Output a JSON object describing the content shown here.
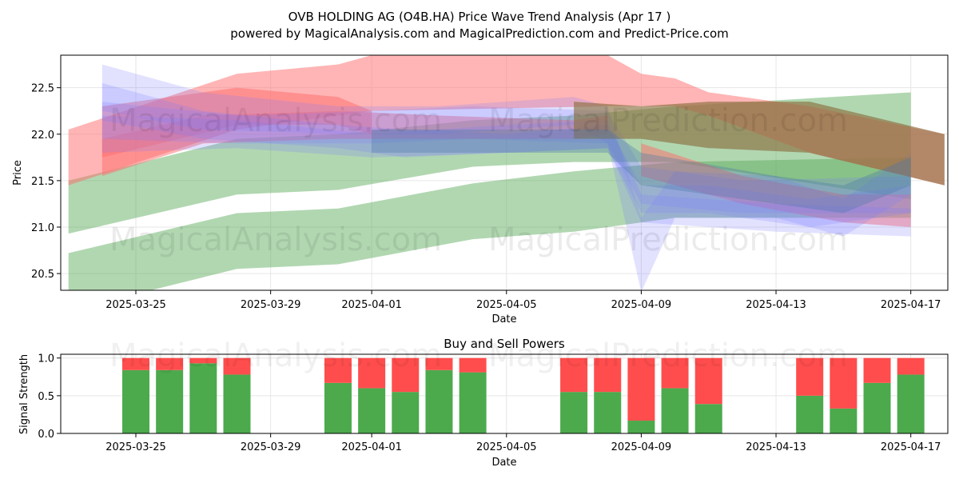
{
  "header": {
    "title": "OVB HOLDING AG (O4B.HA) Price Wave Trend Analysis (Apr 17 )",
    "subtitle": "powered by MagicalAnalysis.com and MagicalPrediction.com and Predict-Price.com"
  },
  "watermarks": [
    "MagicalAnalysis.com",
    "MagicalPrediction.com"
  ],
  "colors": {
    "red_band": "#ff6b6b",
    "blue_band": "#7a7aff",
    "green_band": "#5aaa5a",
    "buy": "#4caa4c",
    "sell": "#ff4d4d",
    "grid": "#e6e6e6"
  },
  "chart_data": [
    {
      "type": "area",
      "xlabel": "Date",
      "ylabel": "Price",
      "xlim": [
        "2025-03-23",
        "2025-04-18"
      ],
      "ylim": [
        20.32,
        22.85
      ],
      "x_ticks": [
        "2025-03-25",
        "2025-03-29",
        "2025-04-01",
        "2025-04-05",
        "2025-04-09",
        "2025-04-13",
        "2025-04-17"
      ],
      "y_ticks": [
        20.5,
        21.0,
        21.5,
        22.0,
        22.5
      ],
      "grid": true,
      "bands": [
        {
          "color": "green",
          "points": [
            [
              "2025-03-23",
              21.5,
              20.93
            ],
            [
              "2025-03-28",
              21.95,
              21.35
            ],
            [
              "2025-03-31",
              22.0,
              21.4
            ],
            [
              "2025-04-04",
              22.15,
              21.65
            ],
            [
              "2025-04-07",
              22.2,
              21.7
            ],
            [
              "2025-04-10",
              22.3,
              21.7
            ],
            [
              "2025-04-17",
              22.45,
              21.3
            ]
          ]
        },
        {
          "color": "green",
          "points": [
            [
              "2025-03-23",
              20.72,
              20.1
            ],
            [
              "2025-03-28",
              21.15,
              20.55
            ],
            [
              "2025-03-31",
              21.2,
              20.6
            ],
            [
              "2025-04-04",
              21.47,
              20.87
            ],
            [
              "2025-04-07",
              21.6,
              20.95
            ],
            [
              "2025-04-10",
              21.7,
              21.1
            ],
            [
              "2025-04-17",
              21.75,
              21.1
            ]
          ]
        },
        {
          "color": "red",
          "points": [
            [
              "2025-03-23",
              22.05,
              21.45
            ],
            [
              "2025-03-28",
              22.65,
              22.05
            ],
            [
              "2025-03-31",
              22.75,
              22.2
            ],
            [
              "2025-04-01",
              22.85,
              22.25
            ],
            [
              "2025-04-08",
              22.85,
              22.3
            ],
            [
              "2025-04-09",
              22.65,
              22.3
            ],
            [
              "2025-04-10",
              22.6,
              22.3
            ],
            [
              "2025-04-11",
              22.45,
              22.2
            ],
            [
              "2025-04-14",
              22.3,
              21.8
            ],
            [
              "2025-04-18",
              22.0,
              21.45
            ]
          ]
        },
        {
          "color": "red",
          "points": [
            [
              "2025-03-24",
              21.95,
              21.55
            ],
            [
              "2025-03-27",
              22.2,
              21.9
            ],
            [
              "2025-03-31",
              22.25,
              21.95
            ],
            [
              "2025-04-03",
              22.2,
              21.95
            ],
            [
              "2025-04-07",
              22.15,
              21.95
            ],
            [
              "2025-04-08",
              22.2,
              22.0
            ]
          ]
        },
        {
          "color": "red",
          "points": [
            [
              "2025-03-24",
              22.3,
              21.75
            ],
            [
              "2025-03-28",
              22.5,
              22.1
            ],
            [
              "2025-03-31",
              22.4,
              22.1
            ],
            [
              "2025-04-01",
              22.25,
              22.0
            ]
          ]
        },
        {
          "color": "red",
          "points": [
            [
              "2025-04-09",
              21.9,
              21.55
            ],
            [
              "2025-04-12",
              21.55,
              21.25
            ],
            [
              "2025-04-15",
              21.35,
              21.05
            ],
            [
              "2025-04-17",
              21.35,
              21.0
            ]
          ]
        },
        {
          "color": "blue",
          "points": [
            [
              "2025-03-24",
              22.75,
              22.25
            ],
            [
              "2025-03-27",
              22.45,
              22.05
            ],
            [
              "2025-03-31",
              22.3,
              22.0
            ],
            [
              "2025-04-03",
              22.3,
              22.0
            ],
            [
              "2025-04-07",
              22.4,
              22.1
            ],
            [
              "2025-04-08",
              22.3,
              21.9
            ],
            [
              "2025-04-09",
              21.1,
              20.3
            ],
            [
              "2025-04-10",
              21.6,
              21.1
            ],
            [
              "2025-04-13",
              21.55,
              21.1
            ],
            [
              "2025-04-15",
              21.3,
              20.9
            ],
            [
              "2025-04-17",
              21.8,
              21.35
            ]
          ]
        },
        {
          "color": "blue",
          "points": [
            [
              "2025-03-24",
              22.55,
              22.15
            ],
            [
              "2025-03-27",
              22.25,
              21.95
            ],
            [
              "2025-03-31",
              22.1,
              21.85
            ],
            [
              "2025-04-02",
              22.05,
              21.75
            ],
            [
              "2025-04-05",
              22.0,
              21.8
            ],
            [
              "2025-04-08",
              22.1,
              21.85
            ],
            [
              "2025-04-09",
              21.45,
              21.15
            ],
            [
              "2025-04-11",
              21.45,
              21.15
            ],
            [
              "2025-04-14",
              21.3,
              21.0
            ],
            [
              "2025-04-17",
              21.45,
              21.15
            ]
          ]
        },
        {
          "color": "blue",
          "points": [
            [
              "2025-03-24",
              22.35,
              21.95
            ],
            [
              "2025-03-28",
              22.2,
              21.9
            ],
            [
              "2025-04-01",
              22.25,
              21.9
            ],
            [
              "2025-04-04",
              22.3,
              21.95
            ],
            [
              "2025-04-08",
              22.25,
              21.9
            ],
            [
              "2025-04-09",
              21.65,
              21.25
            ],
            [
              "2025-04-12",
              21.5,
              21.15
            ],
            [
              "2025-04-17",
              21.55,
              21.15
            ]
          ]
        },
        {
          "color": "blue",
          "points": [
            [
              "2025-03-24",
              22.2,
              21.8
            ],
            [
              "2025-03-28",
              22.15,
              21.85
            ],
            [
              "2025-04-01",
              22.0,
              21.75
            ],
            [
              "2025-04-05",
              22.1,
              21.8
            ],
            [
              "2025-04-08",
              22.15,
              21.85
            ],
            [
              "2025-04-09",
              21.35,
              21.05
            ],
            [
              "2025-04-13",
              21.25,
              20.95
            ],
            [
              "2025-04-17",
              21.2,
              20.9
            ]
          ]
        },
        {
          "color": "brown",
          "points": [
            [
              "2025-04-07",
              22.35,
              21.95
            ],
            [
              "2025-04-09",
              22.3,
              21.95
            ],
            [
              "2025-04-11",
              22.35,
              21.85
            ],
            [
              "2025-04-14",
              22.35,
              21.8
            ],
            [
              "2025-04-18",
              22.0,
              21.45
            ]
          ]
        },
        {
          "color": "steel",
          "points": [
            [
              "2025-04-01",
              22.05,
              21.8
            ],
            [
              "2025-04-05",
              22.05,
              21.8
            ],
            [
              "2025-04-08",
              22.05,
              21.8
            ],
            [
              "2025-04-09",
              21.8,
              21.45
            ],
            [
              "2025-04-13",
              21.55,
              21.25
            ],
            [
              "2025-04-15",
              21.45,
              21.15
            ],
            [
              "2025-04-17",
              21.75,
              21.45
            ]
          ]
        }
      ]
    },
    {
      "type": "bar",
      "title": "Buy and Sell Powers",
      "xlabel": "Date",
      "ylabel": "Signal Strength",
      "ylim": [
        0,
        1.05
      ],
      "y_ticks": [
        0.0,
        0.5,
        1.0
      ],
      "x_ticks": [
        "2025-03-25",
        "2025-03-29",
        "2025-04-01",
        "2025-04-05",
        "2025-04-09",
        "2025-04-13",
        "2025-04-17"
      ],
      "series": [
        {
          "name": "Buy",
          "values": [
            0.84,
            0.84,
            0.93,
            0.78,
            0.67,
            0.6,
            0.55,
            0.84,
            0.81,
            0.55,
            0.55,
            0.17,
            0.6,
            0.39,
            0.5,
            0.33,
            0.67,
            0.78
          ]
        },
        {
          "name": "Sell",
          "values": [
            0.16,
            0.16,
            0.07,
            0.22,
            0.33,
            0.4,
            0.45,
            0.16,
            0.19,
            0.45,
            0.45,
            0.83,
            0.4,
            0.61,
            0.5,
            0.67,
            0.33,
            0.22
          ]
        }
      ],
      "categories": [
        "2025-03-25",
        "2025-03-26",
        "2025-03-27",
        "2025-03-28",
        "2025-03-31",
        "2025-04-01",
        "2025-04-02",
        "2025-04-03",
        "2025-04-04",
        "2025-04-07",
        "2025-04-08",
        "2025-04-09",
        "2025-04-10",
        "2025-04-11",
        "2025-04-14",
        "2025-04-15",
        "2025-04-16",
        "2025-04-17"
      ]
    }
  ]
}
